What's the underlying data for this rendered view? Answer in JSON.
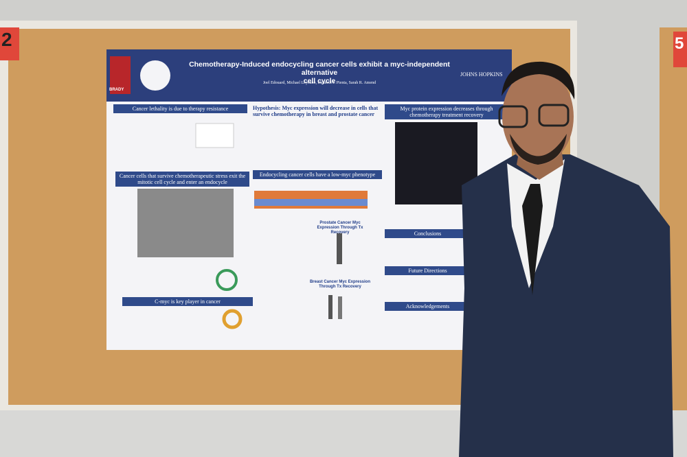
{
  "board_numbers": [
    "2",
    "5"
  ],
  "poster": {
    "title_lines": [
      "Chemotherapy-Induced endocycling cancer cells exhibit a myc-independent alternative",
      "cell cycle"
    ],
    "authors": "Joel Edouard, Michael Loycano, Kenneth J. Pienta, Sarah R. Amend",
    "logo_left": "BRADY",
    "logo_right": "JOHNS HOPKINS",
    "sections": [
      "Cancer lethality is due to therapy resistance",
      "Cancer cells that survive chemotherapeutic stress exit the mitotic cell cycle and enter an endocycle",
      "C-myc is key player in cancer",
      "Hypothesis: Myc expression will decrease in cells that survive chemotherapy in breast and prostate cancer",
      "Endocycling cancer cells have a low-myc phenotype",
      "Myc protein expression decreases through chemotherapy treatment recovery",
      "Conclusions",
      "Future Directions",
      "Acknowledgements"
    ],
    "plot_titles": [
      "Prostate Cancer Myc Expression Through Tx Recovery",
      "Breast Cancer Myc Expression Through Tx Recovery"
    ]
  }
}
